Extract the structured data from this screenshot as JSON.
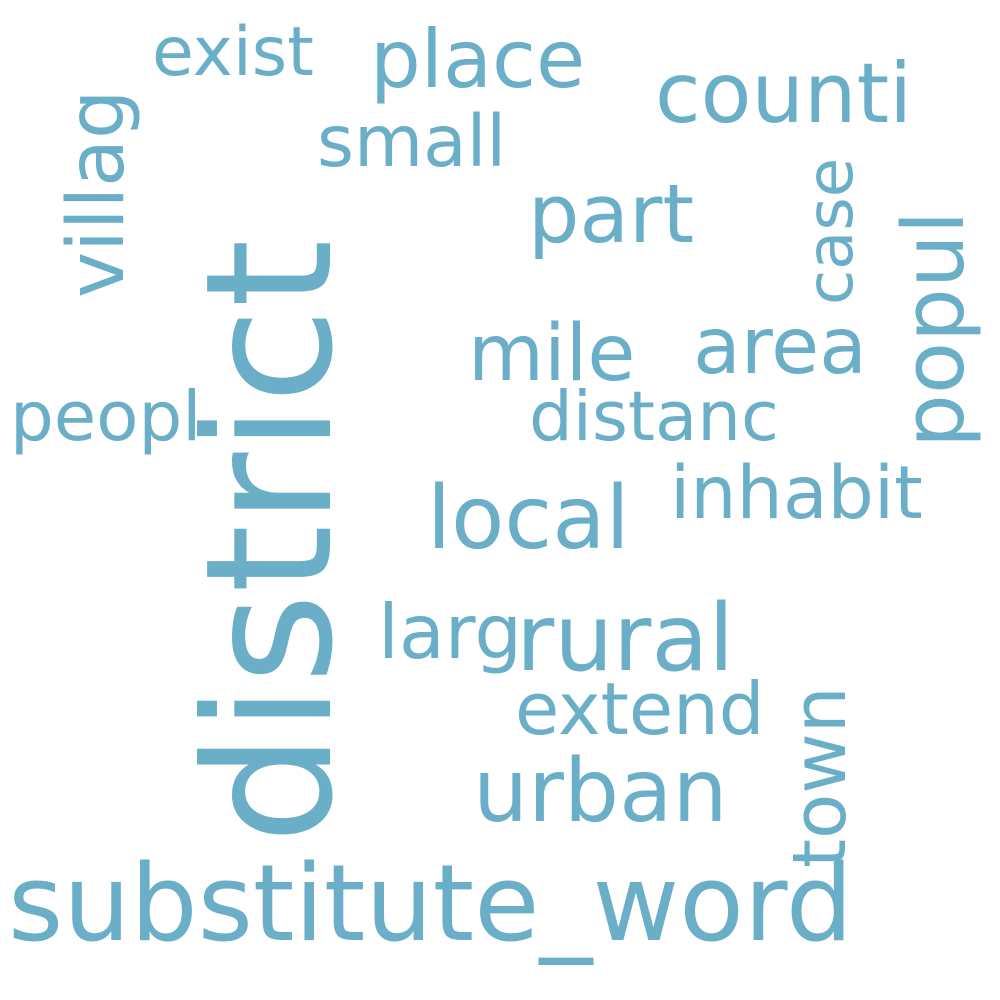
{
  "word_color": "#6aaec8",
  "background_color": "#ffffff",
  "words": {
    "substitute_word": "substitute_word",
    "district": "district",
    "counti": "counti",
    "place": "place",
    "exist": "exist",
    "part": "part",
    "small": "small",
    "villag": "villag",
    "case": "case",
    "popul": "popul",
    "mile": "mile",
    "area": "area",
    "distanc": "distanc",
    "peopl": "peopl",
    "inhabit": "inhabit",
    "local": "local",
    "rural": "rural",
    "larg": "larg",
    "extend": "extend",
    "town": "town",
    "urban": "urban"
  }
}
